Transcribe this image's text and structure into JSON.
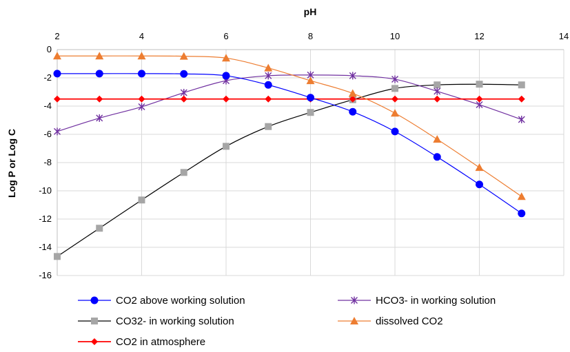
{
  "chart_data": {
    "type": "line",
    "xlabel": "pH",
    "ylabel": "Log P or Log C",
    "xlim": [
      2,
      14
    ],
    "ylim": [
      -16,
      0
    ],
    "x_ticks": [
      "2",
      "4",
      "6",
      "8",
      "10",
      "12",
      "14"
    ],
    "y_ticks": [
      "0",
      "-2",
      "-4",
      "-6",
      "-8",
      "-10",
      "-12",
      "-14",
      "-16"
    ],
    "x_axis_position": "top",
    "grid": true,
    "legend_position": "bottom",
    "x": [
      2,
      3,
      4,
      5,
      6,
      7,
      8,
      9,
      10,
      11,
      12,
      13
    ],
    "series": [
      {
        "name": "CO2 above working solution",
        "color": "#0000ff",
        "marker": "circle",
        "values": [
          -1.7,
          -1.7,
          -1.7,
          -1.72,
          -1.85,
          -2.5,
          -3.4,
          -4.4,
          -5.8,
          -7.6,
          -9.55,
          -11.6
        ]
      },
      {
        "name": "HCO3- in working solution",
        "color": "#7030a0",
        "marker": "asterisk",
        "values": [
          -5.8,
          -4.85,
          -4.05,
          -3.05,
          -2.2,
          -1.85,
          -1.8,
          -1.85,
          -2.1,
          -2.95,
          -3.9,
          -4.95
        ]
      },
      {
        "name": "CO32- in working solution",
        "color": "#000000",
        "marker_color": "#a6a6a6",
        "marker": "square",
        "values": [
          -14.65,
          -12.65,
          -10.65,
          -8.7,
          -6.85,
          -5.45,
          -4.45,
          -3.55,
          -2.75,
          -2.5,
          -2.45,
          -2.5
        ]
      },
      {
        "name": "dissolved CO2",
        "color": "#ed7d31",
        "marker": "triangle",
        "values": [
          -0.45,
          -0.45,
          -0.45,
          -0.47,
          -0.6,
          -1.3,
          -2.2,
          -3.1,
          -4.5,
          -6.35,
          -8.35,
          -10.4
        ]
      },
      {
        "name": "CO2 in atmosphere",
        "color": "#ff0000",
        "marker_color": "#ff0000",
        "marker": "diamond",
        "values": [
          -3.5,
          -3.5,
          -3.5,
          -3.5,
          -3.5,
          -3.5,
          -3.5,
          -3.5,
          -3.5,
          -3.5,
          -3.5,
          -3.5
        ]
      }
    ]
  }
}
